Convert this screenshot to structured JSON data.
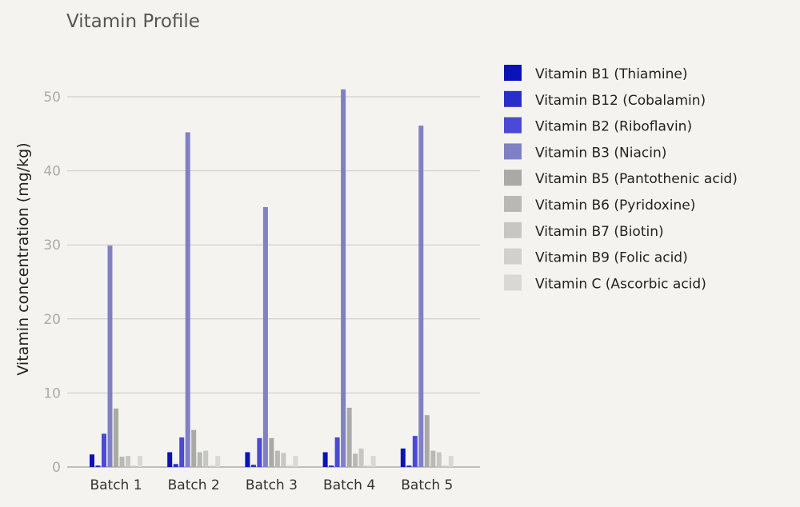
{
  "chart_data": {
    "type": "bar",
    "title": "Vitamin Profile",
    "xlabel": "",
    "ylabel": "Vitamin concentration (mg/kg)",
    "ylim": [
      0,
      55
    ],
    "yticks": [
      0,
      10,
      20,
      30,
      40,
      50
    ],
    "grid": true,
    "legend_position": "right",
    "categories": [
      "Batch 1",
      "Batch 2",
      "Batch 3",
      "Batch 4",
      "Batch 5"
    ],
    "series": [
      {
        "name": "Vitamin B1 (Thiamine)",
        "color": "#0a12b8",
        "values": [
          1.7,
          2.0,
          2.0,
          2.0,
          2.5
        ]
      },
      {
        "name": "Vitamin B12 (Cobalamin)",
        "color": "#2a2ec8",
        "values": [
          0.2,
          0.4,
          0.3,
          0.2,
          0.2
        ]
      },
      {
        "name": "Vitamin B2 (Riboflavin)",
        "color": "#4a4ad6",
        "values": [
          4.5,
          4.0,
          3.9,
          4.0,
          4.2
        ]
      },
      {
        "name": "Vitamin B3 (Niacin)",
        "color": "#8080c4",
        "values": [
          29.9,
          45.2,
          35.1,
          51.0,
          46.1
        ]
      },
      {
        "name": "Vitamin B5 (Pantothenic acid)",
        "color": "#a9a9a5",
        "values": [
          7.9,
          5.0,
          3.9,
          8.0,
          7.0
        ]
      },
      {
        "name": "Vitamin B6 (Pyridoxine)",
        "color": "#b8b8b4",
        "values": [
          1.4,
          2.0,
          2.2,
          1.8,
          2.2
        ]
      },
      {
        "name": "Vitamin B7 (Biotin)",
        "color": "#c6c6c2",
        "values": [
          1.5,
          2.2,
          1.9,
          2.5,
          2.0
        ]
      },
      {
        "name": "Vitamin B9 (Folic acid)",
        "color": "#d0d0cc",
        "values": [
          0.2,
          0.2,
          0.2,
          0.2,
          0.2
        ]
      },
      {
        "name": "Vitamin C (Ascorbic acid)",
        "color": "#d9d8d4",
        "values": [
          1.5,
          1.5,
          1.5,
          1.5,
          1.5
        ]
      }
    ]
  }
}
